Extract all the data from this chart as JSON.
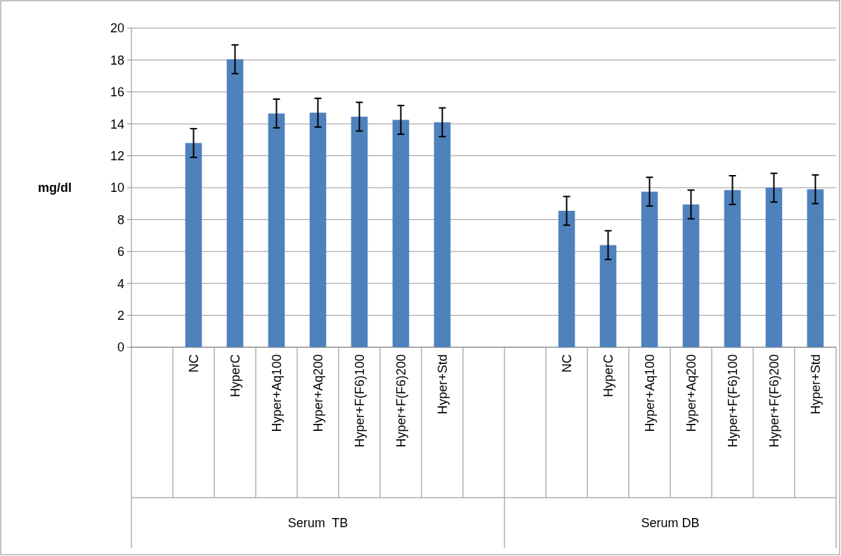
{
  "chart_data": {
    "type": "bar",
    "ylabel": "mg/dl",
    "categories": [
      null,
      "NC",
      "HyperC",
      "Hyper+Aq100",
      "Hyper+Aq200",
      "Hyper+F(F6)100",
      "Hyper+F(F6)200",
      "Hyper+Std",
      null,
      null,
      "NC",
      "HyperC",
      "Hyper+Aq100",
      "Hyper+Aq200",
      "Hyper+F(F6)100",
      "Hyper+F(F6)200",
      "Hyper+Std"
    ],
    "series": [
      {
        "color": "#4f81bd",
        "values": [
          null,
          12.8,
          18.05,
          14.65,
          14.7,
          14.45,
          14.25,
          14.1,
          null,
          null,
          8.55,
          6.4,
          9.75,
          8.95,
          9.85,
          10.0,
          9.9
        ],
        "errors": [
          null,
          0.9,
          0.9,
          0.9,
          0.9,
          0.9,
          0.9,
          0.9,
          null,
          null,
          0.9,
          0.9,
          0.9,
          0.9,
          0.9,
          0.9,
          0.9
        ]
      }
    ],
    "ylim": [
      0,
      20
    ],
    "yticks": [
      0,
      2,
      4,
      6,
      8,
      10,
      12,
      14,
      16,
      18,
      20
    ],
    "grid": "y",
    "annotations": [
      "Serum  TB",
      "Serum DB"
    ]
  }
}
